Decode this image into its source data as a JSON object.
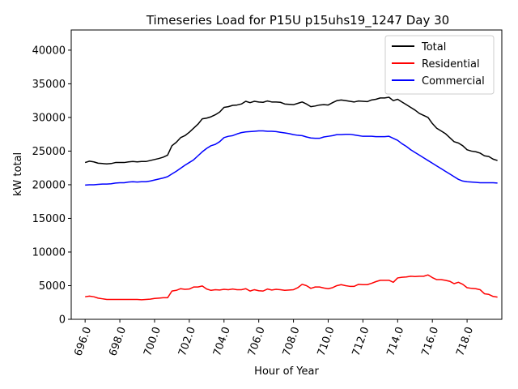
{
  "chart_data": {
    "type": "line",
    "title": "Timeseries Load for P15U p15uhs19_1247  Day 30",
    "xlabel": "Hour of Year",
    "ylabel": "kW total",
    "xlim": [
      695.2,
      720.0
    ],
    "ylim": [
      0,
      43000
    ],
    "x_ticks": [
      696,
      698,
      700,
      702,
      704,
      706,
      708,
      710,
      712,
      714,
      716,
      718
    ],
    "x_tick_labels": [
      "696.0",
      "698.0",
      "700.0",
      "702.0",
      "704.0",
      "706.0",
      "708.0",
      "710.0",
      "712.0",
      "714.0",
      "716.0",
      "718.0"
    ],
    "y_ticks": [
      0,
      5000,
      10000,
      15000,
      20000,
      25000,
      30000,
      35000,
      40000
    ],
    "y_tick_labels": [
      "0",
      "5000",
      "10000",
      "15000",
      "20000",
      "25000",
      "30000",
      "35000",
      "40000"
    ],
    "legend_position": "top-right",
    "grid": false,
    "x_start": 696.0,
    "x_step": 0.25,
    "series": [
      {
        "name": "Total",
        "color": "#000000",
        "values": [
          23300,
          23500,
          23400,
          23200,
          23150,
          23100,
          23150,
          23300,
          23300,
          23300,
          23400,
          23450,
          23400,
          23450,
          23450,
          23600,
          23750,
          23900,
          24100,
          24400,
          25800,
          26300,
          27000,
          27300,
          27800,
          28400,
          29000,
          29800,
          29900,
          30100,
          30400,
          30800,
          31500,
          31600,
          31800,
          31850,
          32000,
          32400,
          32200,
          32400,
          32300,
          32250,
          32450,
          32300,
          32300,
          32250,
          32000,
          31950,
          31900,
          32100,
          32300,
          32000,
          31600,
          31700,
          31850,
          31900,
          31850,
          32200,
          32500,
          32600,
          32500,
          32400,
          32300,
          32450,
          32400,
          32350,
          32600,
          32700,
          32900,
          32900,
          33000,
          32500,
          32700,
          32300,
          31900,
          31500,
          31100,
          30600,
          30300,
          30000,
          29100,
          28400,
          28000,
          27600,
          27000,
          26400,
          26200,
          25800,
          25200,
          25000,
          24900,
          24700,
          24300,
          24200,
          23800,
          23600
        ]
      },
      {
        "name": "Residential",
        "color": "#ff0000",
        "values": [
          3350,
          3450,
          3350,
          3150,
          3050,
          2950,
          2950,
          2950,
          2950,
          2950,
          2950,
          2950,
          2950,
          2900,
          2950,
          3000,
          3100,
          3150,
          3200,
          3200,
          4200,
          4300,
          4550,
          4450,
          4500,
          4800,
          4800,
          4950,
          4500,
          4300,
          4400,
          4350,
          4450,
          4400,
          4500,
          4400,
          4400,
          4550,
          4200,
          4400,
          4250,
          4200,
          4500,
          4350,
          4450,
          4400,
          4300,
          4350,
          4400,
          4700,
          5200,
          5000,
          4600,
          4800,
          4800,
          4650,
          4550,
          4700,
          5000,
          5150,
          5000,
          4900,
          4900,
          5200,
          5150,
          5150,
          5350,
          5600,
          5800,
          5800,
          5800,
          5500,
          6150,
          6250,
          6300,
          6400,
          6350,
          6400,
          6400,
          6600,
          6200,
          5900,
          5900,
          5800,
          5650,
          5300,
          5500,
          5200,
          4700,
          4600,
          4550,
          4400,
          3800,
          3700,
          3400,
          3300
        ]
      },
      {
        "name": "Commercial",
        "color": "#0000ff",
        "values": [
          19950,
          20000,
          20000,
          20050,
          20100,
          20100,
          20150,
          20250,
          20300,
          20300,
          20400,
          20450,
          20400,
          20450,
          20450,
          20550,
          20700,
          20850,
          21000,
          21200,
          21600,
          22000,
          22450,
          22900,
          23300,
          23700,
          24300,
          24900,
          25400,
          25800,
          26000,
          26400,
          27000,
          27200,
          27300,
          27550,
          27750,
          27850,
          27900,
          27950,
          28000,
          28000,
          27950,
          27950,
          27900,
          27800,
          27700,
          27600,
          27450,
          27350,
          27300,
          27100,
          26950,
          26900,
          26900,
          27100,
          27200,
          27300,
          27450,
          27450,
          27500,
          27500,
          27400,
          27300,
          27200,
          27200,
          27200,
          27150,
          27150,
          27150,
          27200,
          26900,
          26600,
          26100,
          25700,
          25200,
          24800,
          24400,
          24000,
          23600,
          23200,
          22800,
          22400,
          22000,
          21600,
          21200,
          20800,
          20550,
          20450,
          20400,
          20350,
          20300,
          20300,
          20300,
          20300,
          20250
        ]
      }
    ]
  }
}
